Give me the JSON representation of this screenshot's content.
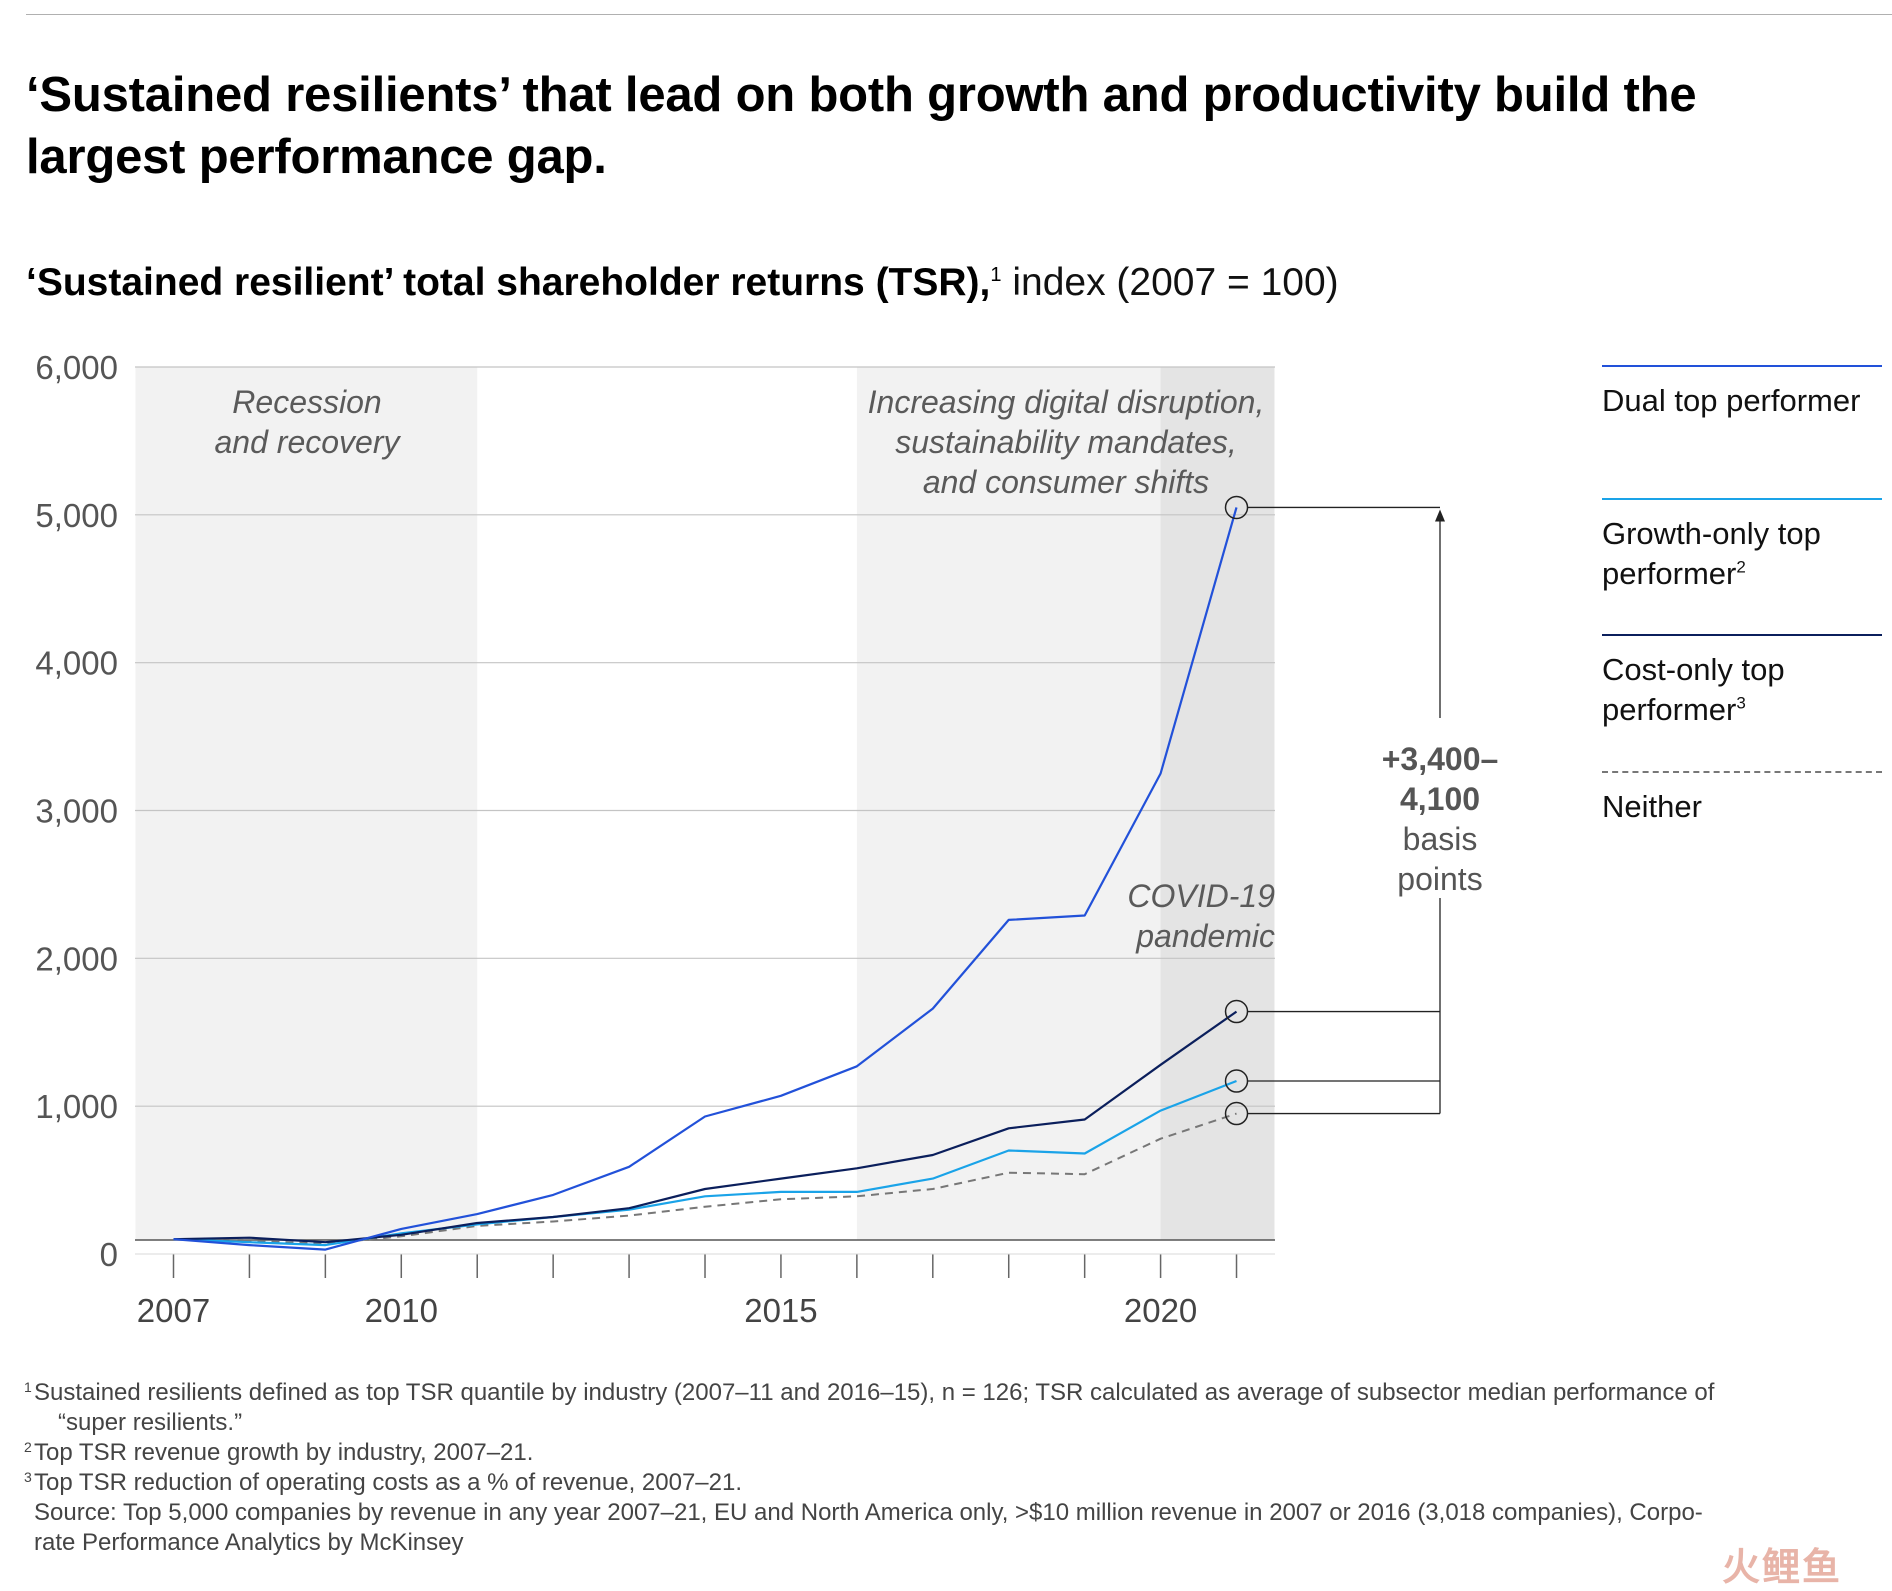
{
  "title": "‘Sustained resilients’ that lead on both growth and productivity build the largest performance gap.",
  "subtitle": {
    "bold": "‘Sustained resilient’ total shareholder returns (TSR),",
    "sup": "1",
    "rest": " index (2007 = 100)"
  },
  "legend": [
    {
      "label": "Dual top performer",
      "sup": "",
      "color": "#2251d9",
      "dashed": false
    },
    {
      "label": "Growth-only top performer",
      "sup": "2",
      "color": "#1aa3e8",
      "dashed": false
    },
    {
      "label": "Cost-only top performer",
      "sup": "3",
      "color": "#0b1f5c",
      "dashed": false
    },
    {
      "label": "Neither",
      "sup": "",
      "color": "#777777",
      "dashed": true
    }
  ],
  "annotation": {
    "line1": "+3,400–",
    "line2": "4,100",
    "line3": "basis",
    "line4": "points"
  },
  "periods": {
    "recession": [
      "Recession",
      "and recovery"
    ],
    "disruption": [
      "Increasing digital disruption,",
      "sustainability mandates,",
      "and consumer shifts"
    ],
    "covid": [
      "COVID-19",
      "pandemic"
    ]
  },
  "chart_data": {
    "type": "line",
    "title": "‘Sustained resilient’ total shareholder returns (TSR), index (2007 = 100)",
    "x": [
      2007,
      2008,
      2009,
      2010,
      2011,
      2012,
      2013,
      2014,
      2015,
      2016,
      2017,
      2018,
      2019,
      2020,
      2021
    ],
    "xticks": [
      2007,
      2010,
      2015,
      2020
    ],
    "ylim": [
      0,
      6000
    ],
    "yticks": [
      0,
      1000,
      2000,
      3000,
      4000,
      5000,
      6000
    ],
    "ytick_labels": [
      "0",
      "1,000",
      "2,000",
      "3,000",
      "4,000",
      "5,000",
      "6,000"
    ],
    "shaded_periods": [
      {
        "from": 2006.5,
        "to": 2011,
        "shade": "light"
      },
      {
        "from": 2016,
        "to": 2021.5,
        "shade": "light"
      },
      {
        "from": 2020,
        "to": 2021.5,
        "shade": "dark"
      }
    ],
    "series": [
      {
        "name": "Dual top performer",
        "color": "#2251d9",
        "dashed": false,
        "values": [
          100,
          60,
          30,
          170,
          270,
          400,
          590,
          930,
          1070,
          1270,
          1660,
          2260,
          2290,
          3250,
          5050
        ]
      },
      {
        "name": "Growth-only top performer",
        "color": "#1aa3e8",
        "dashed": false,
        "values": [
          100,
          80,
          60,
          140,
          200,
          250,
          300,
          390,
          420,
          420,
          510,
          700,
          680,
          970,
          1170
        ]
      },
      {
        "name": "Cost-only top performer",
        "color": "#0b1f5c",
        "dashed": false,
        "values": [
          100,
          110,
          80,
          130,
          210,
          250,
          310,
          440,
          510,
          580,
          670,
          850,
          910,
          1280,
          1640
        ]
      },
      {
        "name": "Neither",
        "color": "#777777",
        "dashed": true,
        "values": [
          100,
          90,
          70,
          120,
          190,
          220,
          260,
          320,
          370,
          390,
          440,
          550,
          540,
          780,
          950
        ]
      }
    ],
    "annotation": "+3,400– 4,100 basis points"
  },
  "footnotes": [
    {
      "sup": "1",
      "text": "Sustained resilients defined as top TSR quantile by industry (2007–11 and 2016–15), n = 126; TSR calculated as average of subsector median performance of",
      "cont": "“super resilients.”"
    },
    {
      "sup": "2",
      "text": "Top TSR revenue growth by industry, 2007–21.",
      "cont": ""
    },
    {
      "sup": "3",
      "text": "Top TSR reduction of operating costs as a % of revenue, 2007–21.",
      "cont": ""
    }
  ],
  "source": {
    "line1": "Source: Top 5,000 companies by revenue in any year 2007–21, EU and North America only, >$10 million revenue in 2007 or 2016 (3,018 companies), Corpo-",
    "line2": "rate Performance Analytics by McKinsey"
  },
  "watermark": "火鲤鱼"
}
